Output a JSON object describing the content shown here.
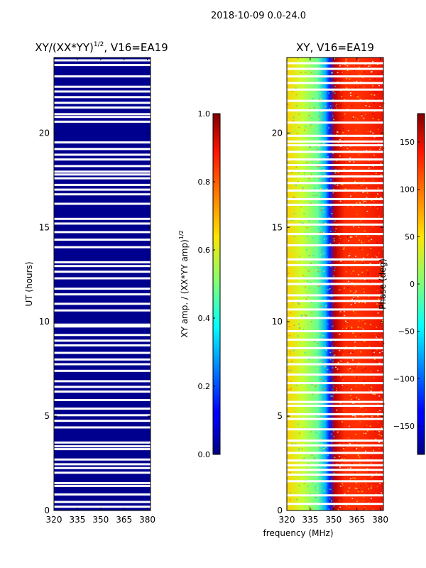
{
  "figure_title": "2018-10-09 0.0-24.0",
  "xlabel_shared": "frequency (MHz)",
  "chart_data": [
    {
      "type": "heatmap",
      "title_prefix": "XY/(XX*YY)",
      "title_exponent": "1/2",
      "title_suffix": ", V16=EA19",
      "ylabel": "UT (hours)",
      "x": {
        "range": [
          320,
          382
        ],
        "ticks": [
          320,
          335,
          350,
          365,
          380
        ],
        "tick_labels": [
          "320",
          "335",
          "350",
          "365",
          "380"
        ]
      },
      "y": {
        "range": [
          0,
          24
        ],
        "ticks": [
          0,
          5,
          10,
          15,
          20
        ],
        "tick_labels": [
          "0",
          "5",
          "10",
          "15",
          "20"
        ]
      },
      "colorbar": {
        "label_prefix": "XY amp. / (XX*YY amp)",
        "label_exponent": "1/2",
        "range": [
          0.0,
          1.0
        ],
        "ticks": [
          0.0,
          0.2,
          0.4,
          0.6,
          0.8,
          1.0
        ],
        "tick_labels": [
          "0.0",
          "0.2",
          "0.4",
          "0.6",
          "0.8",
          "1.0"
        ]
      },
      "dominant_value": 0.01,
      "description_value_note": "normalized amplitude nearly 0 everywhere",
      "gap_rows_ut": [
        0.2,
        0.45,
        0.85,
        1.3,
        1.45,
        2.0,
        2.25,
        2.45,
        2.7,
        3.25,
        3.4,
        3.6,
        4.4,
        4.75,
        5.05,
        5.4,
        5.85,
        6.3,
        6.55,
        6.85,
        7.4,
        7.75,
        8.0,
        8.35,
        8.75,
        9.0,
        9.3,
        9.75,
        9.85,
        10.6,
        10.95,
        11.45,
        11.75,
        12.3,
        12.65,
        12.95,
        13.15,
        13.95,
        14.35,
        14.75,
        15.2,
        15.45,
        16.25,
        16.75,
        17.0,
        17.25,
        17.6,
        17.8,
        17.95,
        18.25,
        18.6,
        18.85,
        19.15,
        19.5,
        20.6,
        20.85,
        21.0,
        21.35,
        21.6,
        21.9,
        22.2,
        22.45,
        23.0,
        23.6,
        23.85
      ]
    },
    {
      "type": "heatmap",
      "title": "XY, V16=EA19",
      "x": {
        "range": [
          320,
          382
        ],
        "ticks": [
          320,
          335,
          350,
          365,
          380
        ],
        "tick_labels": [
          "320",
          "335",
          "350",
          "365",
          "380"
        ]
      },
      "y": {
        "range": [
          0,
          24
        ],
        "ticks": [
          0,
          5,
          10,
          15,
          20
        ],
        "tick_labels": [
          "0",
          "5",
          "10",
          "15",
          "20"
        ]
      },
      "colorbar": {
        "label": "Phase (deg)",
        "range": [
          -180,
          180
        ],
        "ticks": [
          -150,
          -100,
          -50,
          0,
          50,
          100,
          150
        ],
        "tick_labels": [
          "−150",
          "−100",
          "−50",
          "0",
          "50",
          "100",
          "150"
        ]
      },
      "phase_profile_mhz": [
        320,
        330,
        340,
        345,
        350,
        355,
        362,
        370,
        382
      ],
      "phase_profile_deg": [
        60,
        40,
        20,
        -40,
        -90,
        130,
        160,
        170,
        170
      ],
      "gap_rows_ut": [
        0.35,
        0.8,
        1.55,
        1.9,
        2.15,
        2.4,
        2.65,
        3.05,
        3.45,
        3.7,
        4.3,
        4.85,
        5.1,
        5.55,
        5.75,
        6.25,
        6.75,
        7.2,
        7.75,
        8.1,
        8.6,
        9.05,
        9.5,
        10.2,
        10.65,
        11.1,
        11.4,
        12.0,
        12.3,
        13.0,
        13.3,
        14.05,
        14.65,
        15.15,
        15.45,
        16.2,
        16.5,
        16.95,
        17.35,
        17.7,
        18.0,
        18.3,
        18.6,
        19.0,
        19.35,
        19.55,
        19.85,
        20.55,
        21.2,
        21.7,
        22.3,
        22.65,
        23.0,
        23.4,
        23.7
      ]
    }
  ]
}
